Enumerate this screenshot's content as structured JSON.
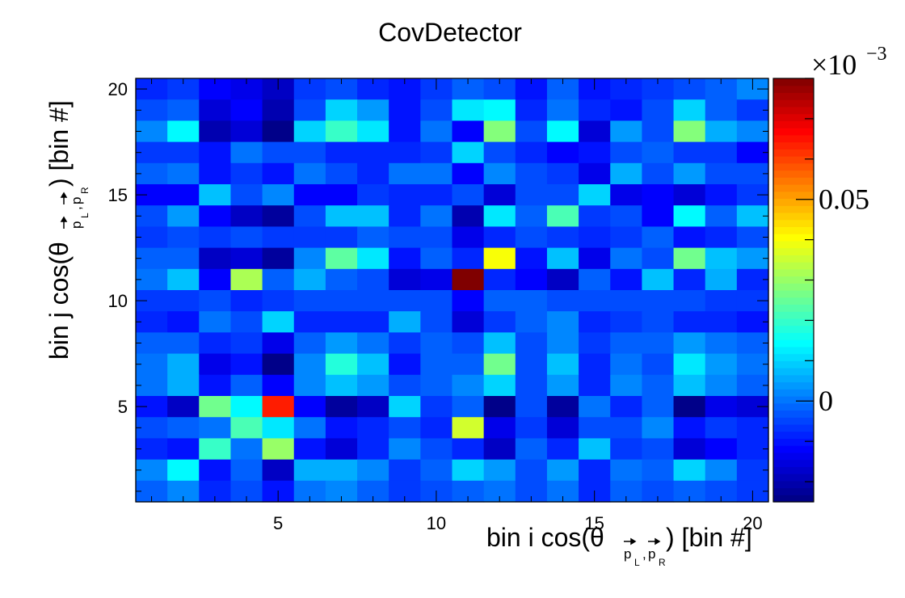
{
  "chart_data": {
    "type": "heatmap",
    "title": "CovDetector",
    "xlabel": {
      "main": "bin i cos(θ",
      "sub1": "p",
      "sub1_sub": "L",
      "sep": ",",
      "sub2": "p",
      "sub2_sub": "R",
      "tail": ") [bin #]"
    },
    "ylabel": {
      "main": "bin j cos(θ",
      "sub1": "p",
      "sub1_sub": "L",
      "sep": ",",
      "sub2": "p",
      "sub2_sub": "R",
      "tail": ") [bin #]"
    },
    "x_range": [
      0.5,
      20.5
    ],
    "y_range": [
      0.5,
      20.5
    ],
    "x_ticks": [
      "5",
      "10",
      "15",
      "20"
    ],
    "y_ticks": [
      "5",
      "10",
      "15",
      "20"
    ],
    "colorbar": {
      "exponent_label": "×10",
      "exponent_power": "−3",
      "min": -0.025,
      "max": 0.08,
      "tick_labels": [
        "0",
        "0.05"
      ],
      "colormap": "jet"
    },
    "z_units_note": "values in units of 10^-3",
    "rows_top_to_bottom": [
      [
        -0.008,
        -0.006,
        -0.012,
        -0.014,
        -0.018,
        -0.006,
        -0.004,
        -0.008,
        -0.01,
        -0.006,
        -0.002,
        -0.004,
        -0.01,
        -0.002,
        -0.01,
        -0.008,
        -0.006,
        -0.004,
        -0.002,
        0.002
      ],
      [
        -0.004,
        -0.002,
        -0.016,
        -0.012,
        -0.02,
        -0.004,
        0.01,
        0.004,
        -0.01,
        -0.004,
        0.012,
        0.014,
        -0.008,
        0.0,
        -0.008,
        -0.01,
        -0.004,
        0.01,
        -0.002,
        -0.006
      ],
      [
        0.002,
        0.014,
        -0.02,
        -0.016,
        -0.024,
        0.01,
        0.02,
        0.012,
        -0.01,
        0.0,
        -0.012,
        0.028,
        -0.004,
        0.014,
        -0.016,
        0.004,
        -0.004,
        0.028,
        0.006,
        0.002
      ],
      [
        -0.006,
        -0.006,
        -0.01,
        0.0,
        -0.004,
        -0.004,
        -0.008,
        -0.008,
        -0.008,
        -0.006,
        0.01,
        -0.004,
        -0.008,
        -0.012,
        -0.01,
        -0.004,
        -0.002,
        -0.006,
        -0.006,
        -0.012
      ],
      [
        -0.002,
        0.0,
        -0.01,
        -0.006,
        -0.01,
        0.0,
        -0.004,
        -0.008,
        0.0,
        0.0,
        -0.012,
        0.002,
        -0.004,
        -0.006,
        -0.014,
        0.006,
        -0.004,
        0.004,
        -0.004,
        -0.004
      ],
      [
        -0.012,
        -0.012,
        0.008,
        -0.004,
        0.002,
        -0.012,
        -0.012,
        -0.006,
        -0.008,
        -0.008,
        -0.004,
        -0.016,
        -0.004,
        -0.004,
        0.01,
        -0.014,
        -0.012,
        -0.016,
        -0.01,
        -0.006
      ],
      [
        -0.004,
        0.004,
        -0.012,
        -0.018,
        -0.022,
        -0.004,
        0.008,
        0.008,
        -0.008,
        0.0,
        -0.02,
        0.012,
        -0.002,
        0.022,
        -0.006,
        -0.004,
        -0.012,
        0.014,
        -0.002,
        0.008
      ],
      [
        -0.006,
        -0.004,
        -0.006,
        -0.004,
        -0.006,
        -0.006,
        -0.006,
        -0.002,
        -0.004,
        -0.004,
        -0.014,
        -0.008,
        -0.004,
        -0.006,
        -0.008,
        -0.006,
        -0.002,
        -0.01,
        -0.008,
        -0.004
      ],
      [
        -0.002,
        -0.002,
        -0.018,
        -0.016,
        -0.022,
        0.002,
        0.024,
        0.012,
        -0.01,
        -0.002,
        -0.008,
        0.04,
        -0.01,
        0.008,
        -0.014,
        0.0,
        -0.004,
        0.026,
        0.008,
        0.004
      ],
      [
        0.0,
        0.008,
        -0.012,
        0.032,
        -0.002,
        0.006,
        -0.002,
        -0.004,
        -0.016,
        -0.014,
        0.08,
        -0.008,
        -0.012,
        -0.018,
        -0.002,
        -0.01,
        0.008,
        -0.008,
        0.006,
        -0.008
      ],
      [
        -0.006,
        -0.006,
        -0.004,
        -0.008,
        -0.006,
        -0.004,
        -0.004,
        -0.004,
        -0.004,
        -0.004,
        -0.012,
        -0.002,
        -0.002,
        -0.004,
        -0.004,
        -0.004,
        -0.004,
        -0.004,
        -0.006,
        -0.006
      ],
      [
        -0.008,
        -0.01,
        0.0,
        -0.004,
        0.01,
        -0.008,
        -0.008,
        -0.008,
        0.006,
        -0.004,
        -0.016,
        -0.006,
        -0.002,
        0.002,
        -0.008,
        -0.006,
        -0.004,
        -0.008,
        -0.008,
        -0.01
      ],
      [
        -0.002,
        -0.002,
        -0.008,
        -0.006,
        -0.014,
        -0.002,
        0.004,
        0.0,
        -0.006,
        -0.002,
        -0.004,
        0.008,
        -0.004,
        0.002,
        -0.006,
        -0.002,
        -0.002,
        0.004,
        0.0,
        -0.002
      ],
      [
        0.0,
        0.006,
        -0.014,
        -0.01,
        -0.024,
        0.002,
        0.018,
        0.008,
        -0.01,
        -0.002,
        -0.002,
        0.026,
        -0.004,
        0.008,
        -0.008,
        0.0,
        -0.004,
        0.012,
        0.004,
        0.0
      ],
      [
        0.0,
        0.006,
        -0.01,
        -0.002,
        -0.012,
        0.002,
        0.008,
        0.004,
        -0.004,
        -0.002,
        0.002,
        0.01,
        -0.004,
        0.004,
        -0.008,
        0.002,
        -0.002,
        0.008,
        0.002,
        -0.002
      ],
      [
        -0.01,
        -0.018,
        0.026,
        0.014,
        0.064,
        -0.012,
        -0.022,
        -0.018,
        0.01,
        -0.006,
        -0.002,
        -0.024,
        -0.004,
        -0.022,
        0.0,
        -0.008,
        -0.002,
        -0.024,
        -0.014,
        -0.016
      ],
      [
        -0.004,
        -0.002,
        0.0,
        0.022,
        0.012,
        0.0,
        -0.01,
        -0.008,
        -0.004,
        -0.008,
        0.036,
        -0.014,
        -0.006,
        -0.016,
        -0.004,
        -0.004,
        0.002,
        -0.01,
        -0.006,
        -0.008
      ],
      [
        -0.008,
        -0.01,
        0.02,
        0.0,
        0.03,
        -0.01,
        -0.016,
        -0.008,
        0.002,
        -0.004,
        -0.008,
        -0.018,
        -0.002,
        -0.008,
        0.008,
        -0.006,
        -0.004,
        -0.016,
        -0.012,
        -0.008
      ],
      [
        0.002,
        0.014,
        -0.01,
        -0.002,
        -0.018,
        0.006,
        0.006,
        0.002,
        -0.006,
        -0.002,
        0.01,
        0.004,
        -0.004,
        0.004,
        -0.008,
        0.0,
        -0.002,
        0.01,
        0.002,
        -0.006
      ],
      [
        -0.002,
        0.002,
        -0.008,
        -0.004,
        -0.01,
        0.0,
        0.002,
        -0.002,
        -0.006,
        -0.004,
        -0.002,
        0.0,
        -0.004,
        0.0,
        -0.008,
        -0.002,
        -0.004,
        -0.002,
        -0.004,
        -0.006
      ]
    ]
  }
}
